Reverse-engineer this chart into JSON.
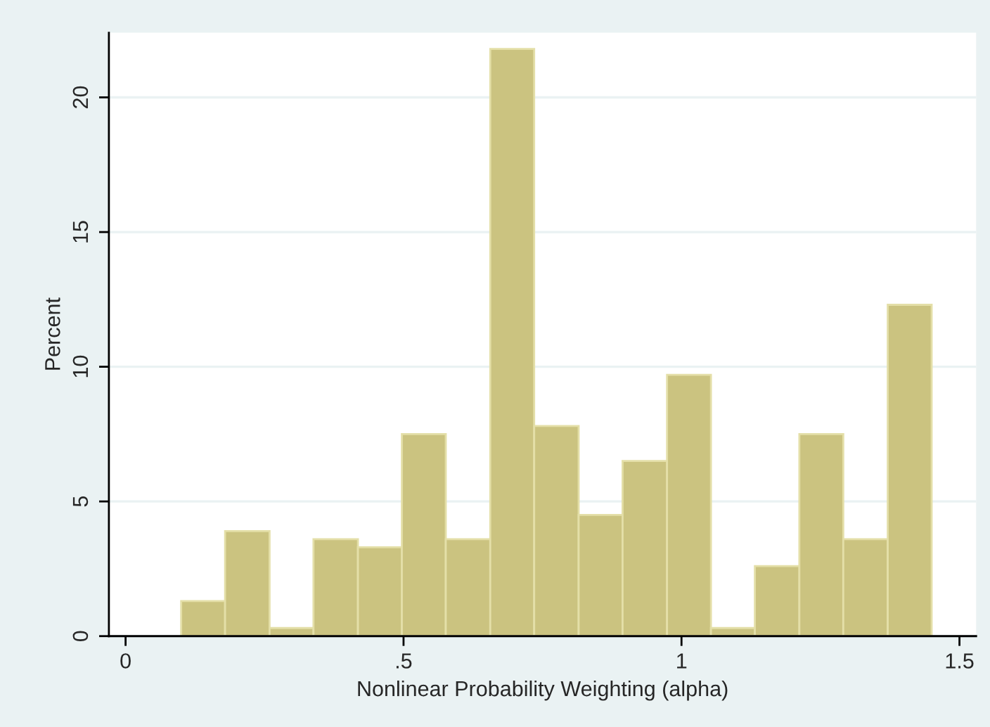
{
  "chart_data": {
    "type": "histogram",
    "xlabel": "Nonlinear Probability Weighting (alpha)",
    "ylabel": "Percent",
    "bins": [
      0.1,
      0.179,
      0.259,
      0.338,
      0.418,
      0.497,
      0.576,
      0.656,
      0.735,
      0.815,
      0.894,
      0.974,
      1.053,
      1.132,
      1.212,
      1.291,
      1.371,
      1.45
    ],
    "values": [
      1.3,
      3.9,
      0.3,
      3.6,
      3.3,
      7.5,
      3.6,
      21.8,
      7.8,
      4.5,
      6.5,
      9.7,
      0.3,
      2.6,
      7.5,
      3.6,
      12.3
    ],
    "color": "#cbc380",
    "xlim": [
      -0.03,
      1.53
    ],
    "xticks": [
      0,
      {
        "value": 0.5,
        "label": ".5"
      },
      1,
      1.5
    ],
    "ylim": [
      0,
      22.4
    ],
    "yticks": [
      0,
      5,
      10,
      15,
      20
    ],
    "grid": "y",
    "legend": false
  }
}
